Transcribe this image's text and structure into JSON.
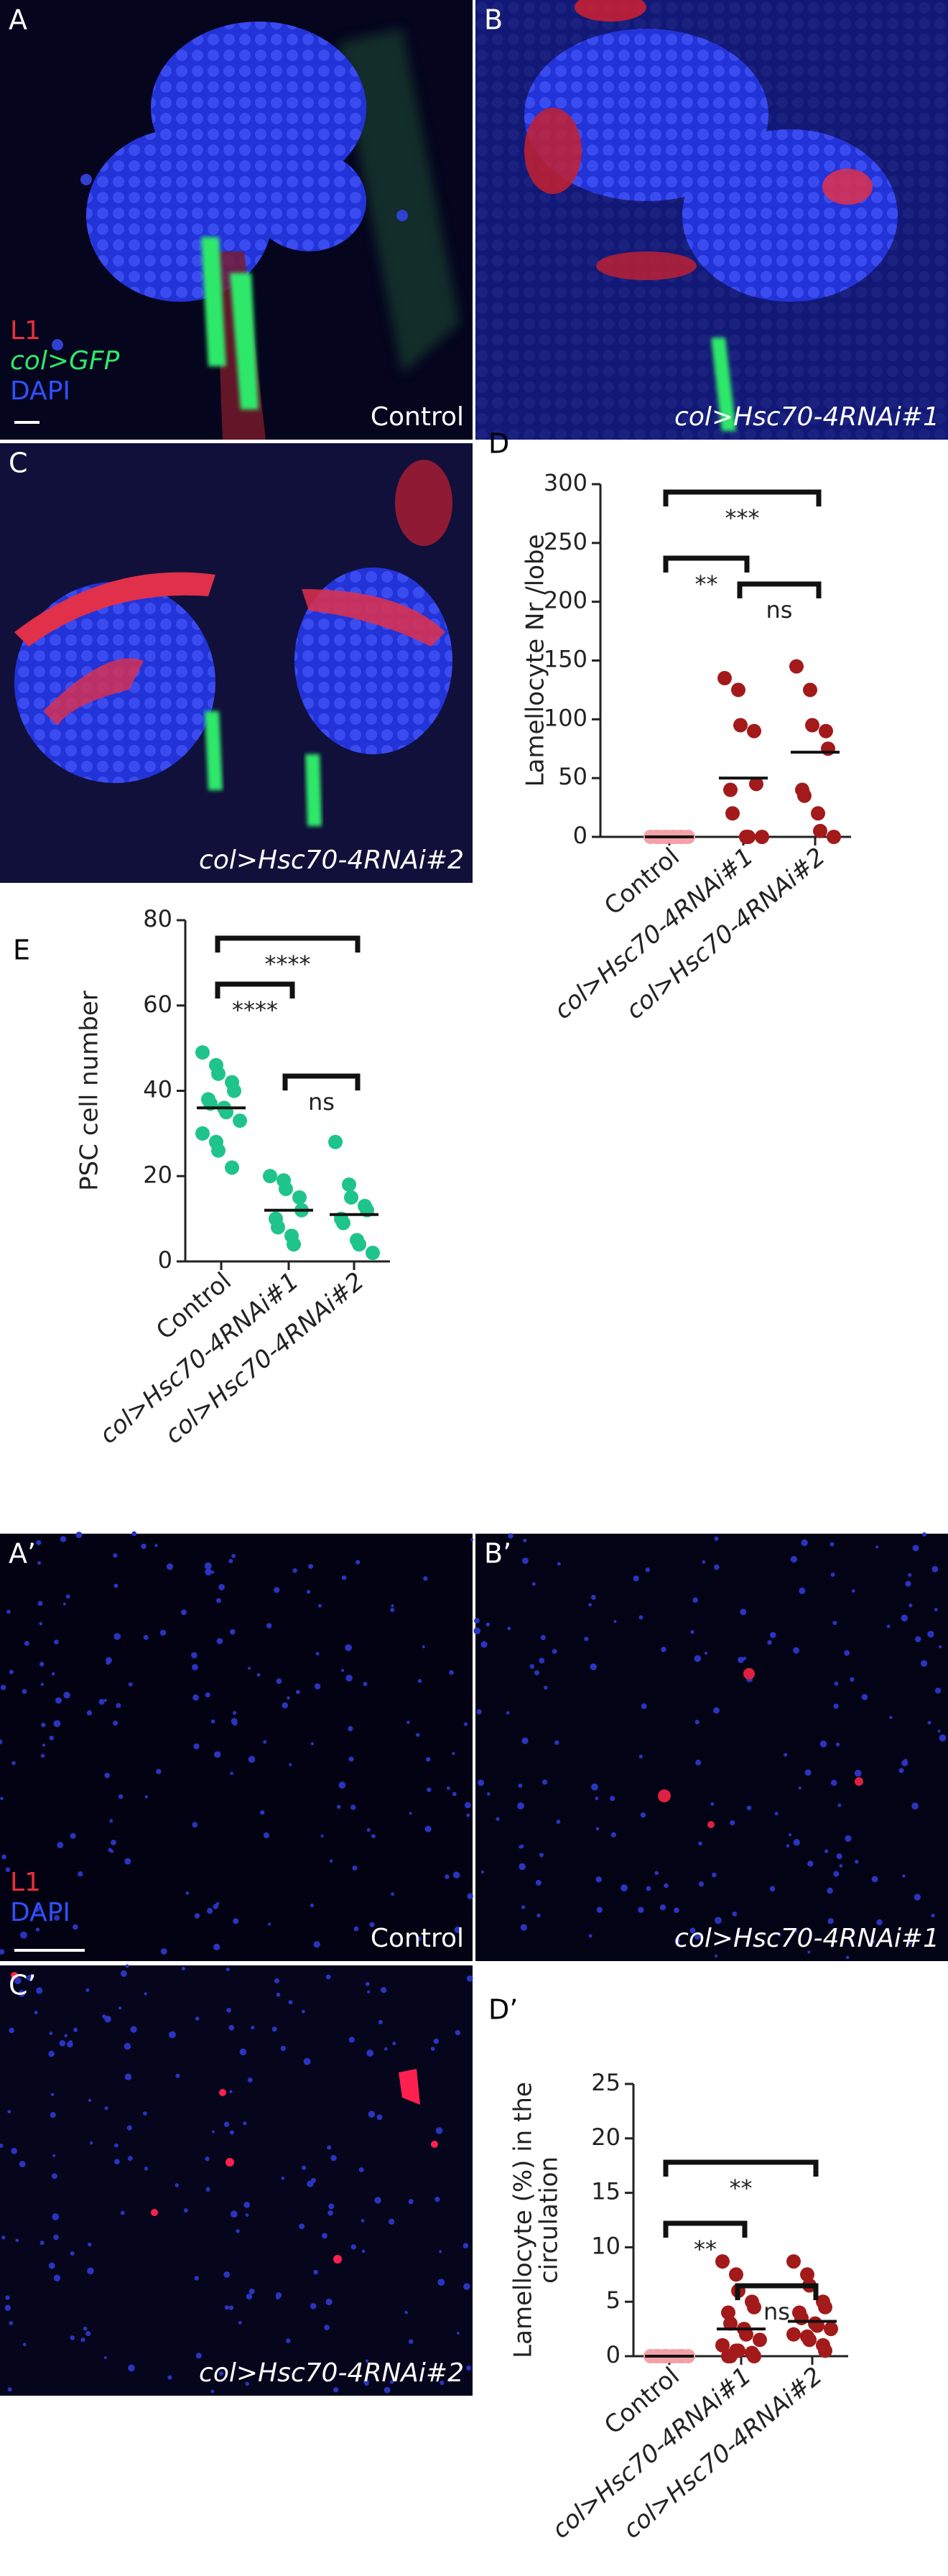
{
  "panels": {
    "a": {
      "letter": "A",
      "legend": [
        "L1",
        "col>GFP",
        "DAPI"
      ],
      "caption": "Control"
    },
    "b": {
      "letter": "B",
      "caption": "col>Hsc70-4RNAi#1"
    },
    "c": {
      "letter": "C",
      "caption": "col>Hsc70-4RNAi#2"
    },
    "a2": {
      "letter": "A’",
      "legend": [
        "L1",
        "DAPI"
      ],
      "caption": "Control"
    },
    "b2": {
      "letter": "B’",
      "caption": "col>Hsc70-4RNAi#1"
    },
    "c2": {
      "letter": "C’",
      "caption": "col>Hsc70-4RNAi#2"
    }
  },
  "chart_data": [
    {
      "type": "dot",
      "letter": "D",
      "y_label": [
        "Lamellocyte Nr /lobe"
      ],
      "categories": [
        "Control",
        "col>Hsc70-4RNAi#1",
        "col>Hsc70-4RNAi#2"
      ],
      "colors": [
        "#f4a0a8",
        "#a31a1a",
        "#a31a1a"
      ],
      "points": [
        [
          0,
          0,
          0,
          0,
          0,
          0,
          0,
          0,
          0,
          0
        ],
        [
          135,
          125,
          95,
          90,
          45,
          40,
          20,
          0,
          0,
          0
        ],
        [
          145,
          125,
          95,
          90,
          75,
          40,
          35,
          20,
          5,
          0
        ]
      ],
      "means": [
        0,
        50,
        72
      ],
      "ylim": [
        0,
        300
      ],
      "yticks": [
        0,
        50,
        100,
        150,
        200,
        250,
        300
      ],
      "annotations": [
        "***",
        "**",
        "ns"
      ]
    },
    {
      "type": "dot",
      "letter": "E",
      "y_label": [
        "PSC cell number"
      ],
      "categories": [
        "Control",
        "col>Hsc70-4RNAi#1",
        "col>Hsc70-4RNAi#2"
      ],
      "colors": [
        "#1fc48a",
        "#1fc48a",
        "#1fc48a"
      ],
      "points": [
        [
          49,
          46,
          44,
          42,
          40,
          38,
          37,
          36,
          35,
          33,
          30,
          28,
          26,
          22
        ],
        [
          20,
          19,
          17,
          15,
          12,
          10,
          8,
          6,
          4
        ],
        [
          28,
          18,
          15,
          13,
          12,
          10,
          9,
          5,
          4,
          2
        ]
      ],
      "means": [
        36,
        12,
        11
      ],
      "ylim": [
        0,
        80
      ],
      "yticks": [
        0,
        20,
        40,
        60,
        80
      ],
      "annotations": [
        "****",
        "****",
        "ns"
      ]
    },
    {
      "type": "dot",
      "letter": "D’",
      "y_label": [
        "Lamellocyte (%) in the",
        "circulation"
      ],
      "categories": [
        "Control",
        "col>Hsc70-4RNAi#1",
        "col>Hsc70-4RNAi#2"
      ],
      "colors": [
        "#f4a0a8",
        "#a31a1a",
        "#a31a1a"
      ],
      "points": [
        [
          0,
          0,
          0,
          0,
          0,
          0,
          0,
          0,
          0,
          0,
          0,
          0,
          0,
          0,
          0,
          0
        ],
        [
          8.7,
          7.5,
          6,
          5,
          4.5,
          4,
          3,
          2.5,
          2,
          1.5,
          1,
          0.5,
          0.5,
          0.3,
          0,
          0,
          0
        ],
        [
          8.7,
          7.5,
          6.5,
          5,
          4.5,
          4,
          3.5,
          3,
          2.8,
          2.5,
          2,
          1.8,
          1.5,
          1,
          0.5
        ]
      ],
      "means": [
        0,
        2.5,
        3.2
      ],
      "ylim": [
        0,
        25
      ],
      "yticks": [
        0,
        5,
        10,
        15,
        20,
        25
      ],
      "annotations": [
        "**",
        "**",
        "ns"
      ]
    }
  ]
}
